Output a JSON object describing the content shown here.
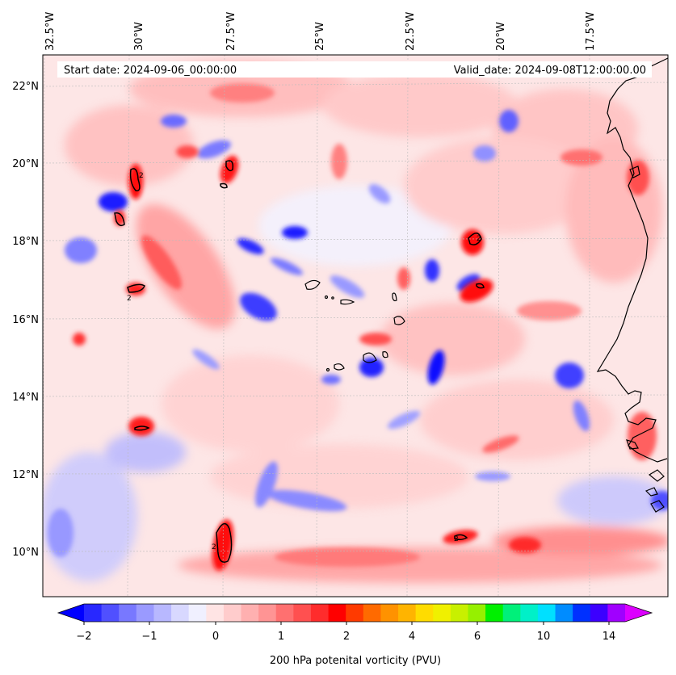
{
  "header": {
    "start_date": "Start date: 2024-09-06_00:00:00",
    "valid_date": "Valid_date: 2024-09-08T12:00:00.00"
  },
  "lon_labels": [
    "32.5°W",
    "30°W",
    "27.5°W",
    "25°W",
    "22.5°W",
    "20°W",
    "17.5°W"
  ],
  "lat_labels": [
    "22°N",
    "20°N",
    "18°N",
    "16°N",
    "14°N",
    "12°N",
    "10°N"
  ],
  "colorbar": {
    "label": "200 hPa potenital vorticity (PVU)",
    "tick_labels": [
      "−2",
      "−1",
      "0",
      "1",
      "2",
      "4",
      "6",
      "10",
      "14"
    ],
    "colors": [
      "#0000ff",
      "#2828ff",
      "#5050ff",
      "#7878ff",
      "#9a9aff",
      "#b8b8ff",
      "#d8d8ff",
      "#f0f0ff",
      "#ffe4e4",
      "#ffcccc",
      "#ffb0b0",
      "#ff9494",
      "#ff7070",
      "#ff5050",
      "#ff2c2c",
      "#ff0000",
      "#ff3a00",
      "#ff6a00",
      "#ff9200",
      "#ffb400",
      "#ffdc00",
      "#f0f000",
      "#c8f000",
      "#96f000",
      "#00f000",
      "#00f07a",
      "#00f0c8",
      "#00e0ff",
      "#008cff",
      "#0030ff",
      "#3c00ff",
      "#a000ff",
      "#dc00ff"
    ]
  },
  "colors": {
    "positive": "#ff2020",
    "negative": "#1010ff",
    "coast": "#000000"
  }
}
